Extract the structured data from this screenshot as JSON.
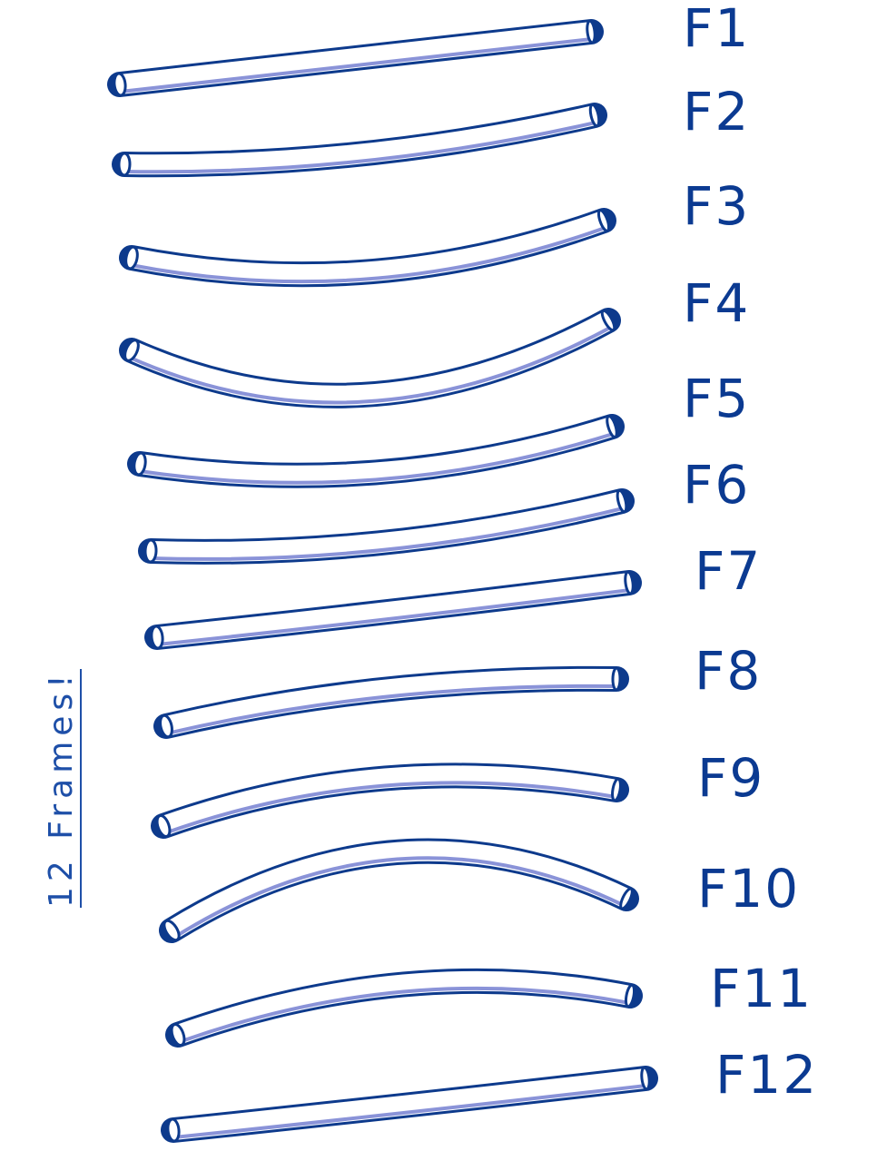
{
  "note": "12 Frames!",
  "colors": {
    "outline": "#0d3a8c",
    "shade": "#8a93d8",
    "fill": "#ffffff"
  },
  "frames": [
    {
      "label": "F1"
    },
    {
      "label": "F2"
    },
    {
      "label": "F3"
    },
    {
      "label": "F4"
    },
    {
      "label": "F5"
    },
    {
      "label": "F6"
    },
    {
      "label": "F7"
    },
    {
      "label": "F8"
    },
    {
      "label": "F9"
    },
    {
      "label": "F10"
    },
    {
      "label": "F11"
    },
    {
      "label": "F12"
    }
  ]
}
